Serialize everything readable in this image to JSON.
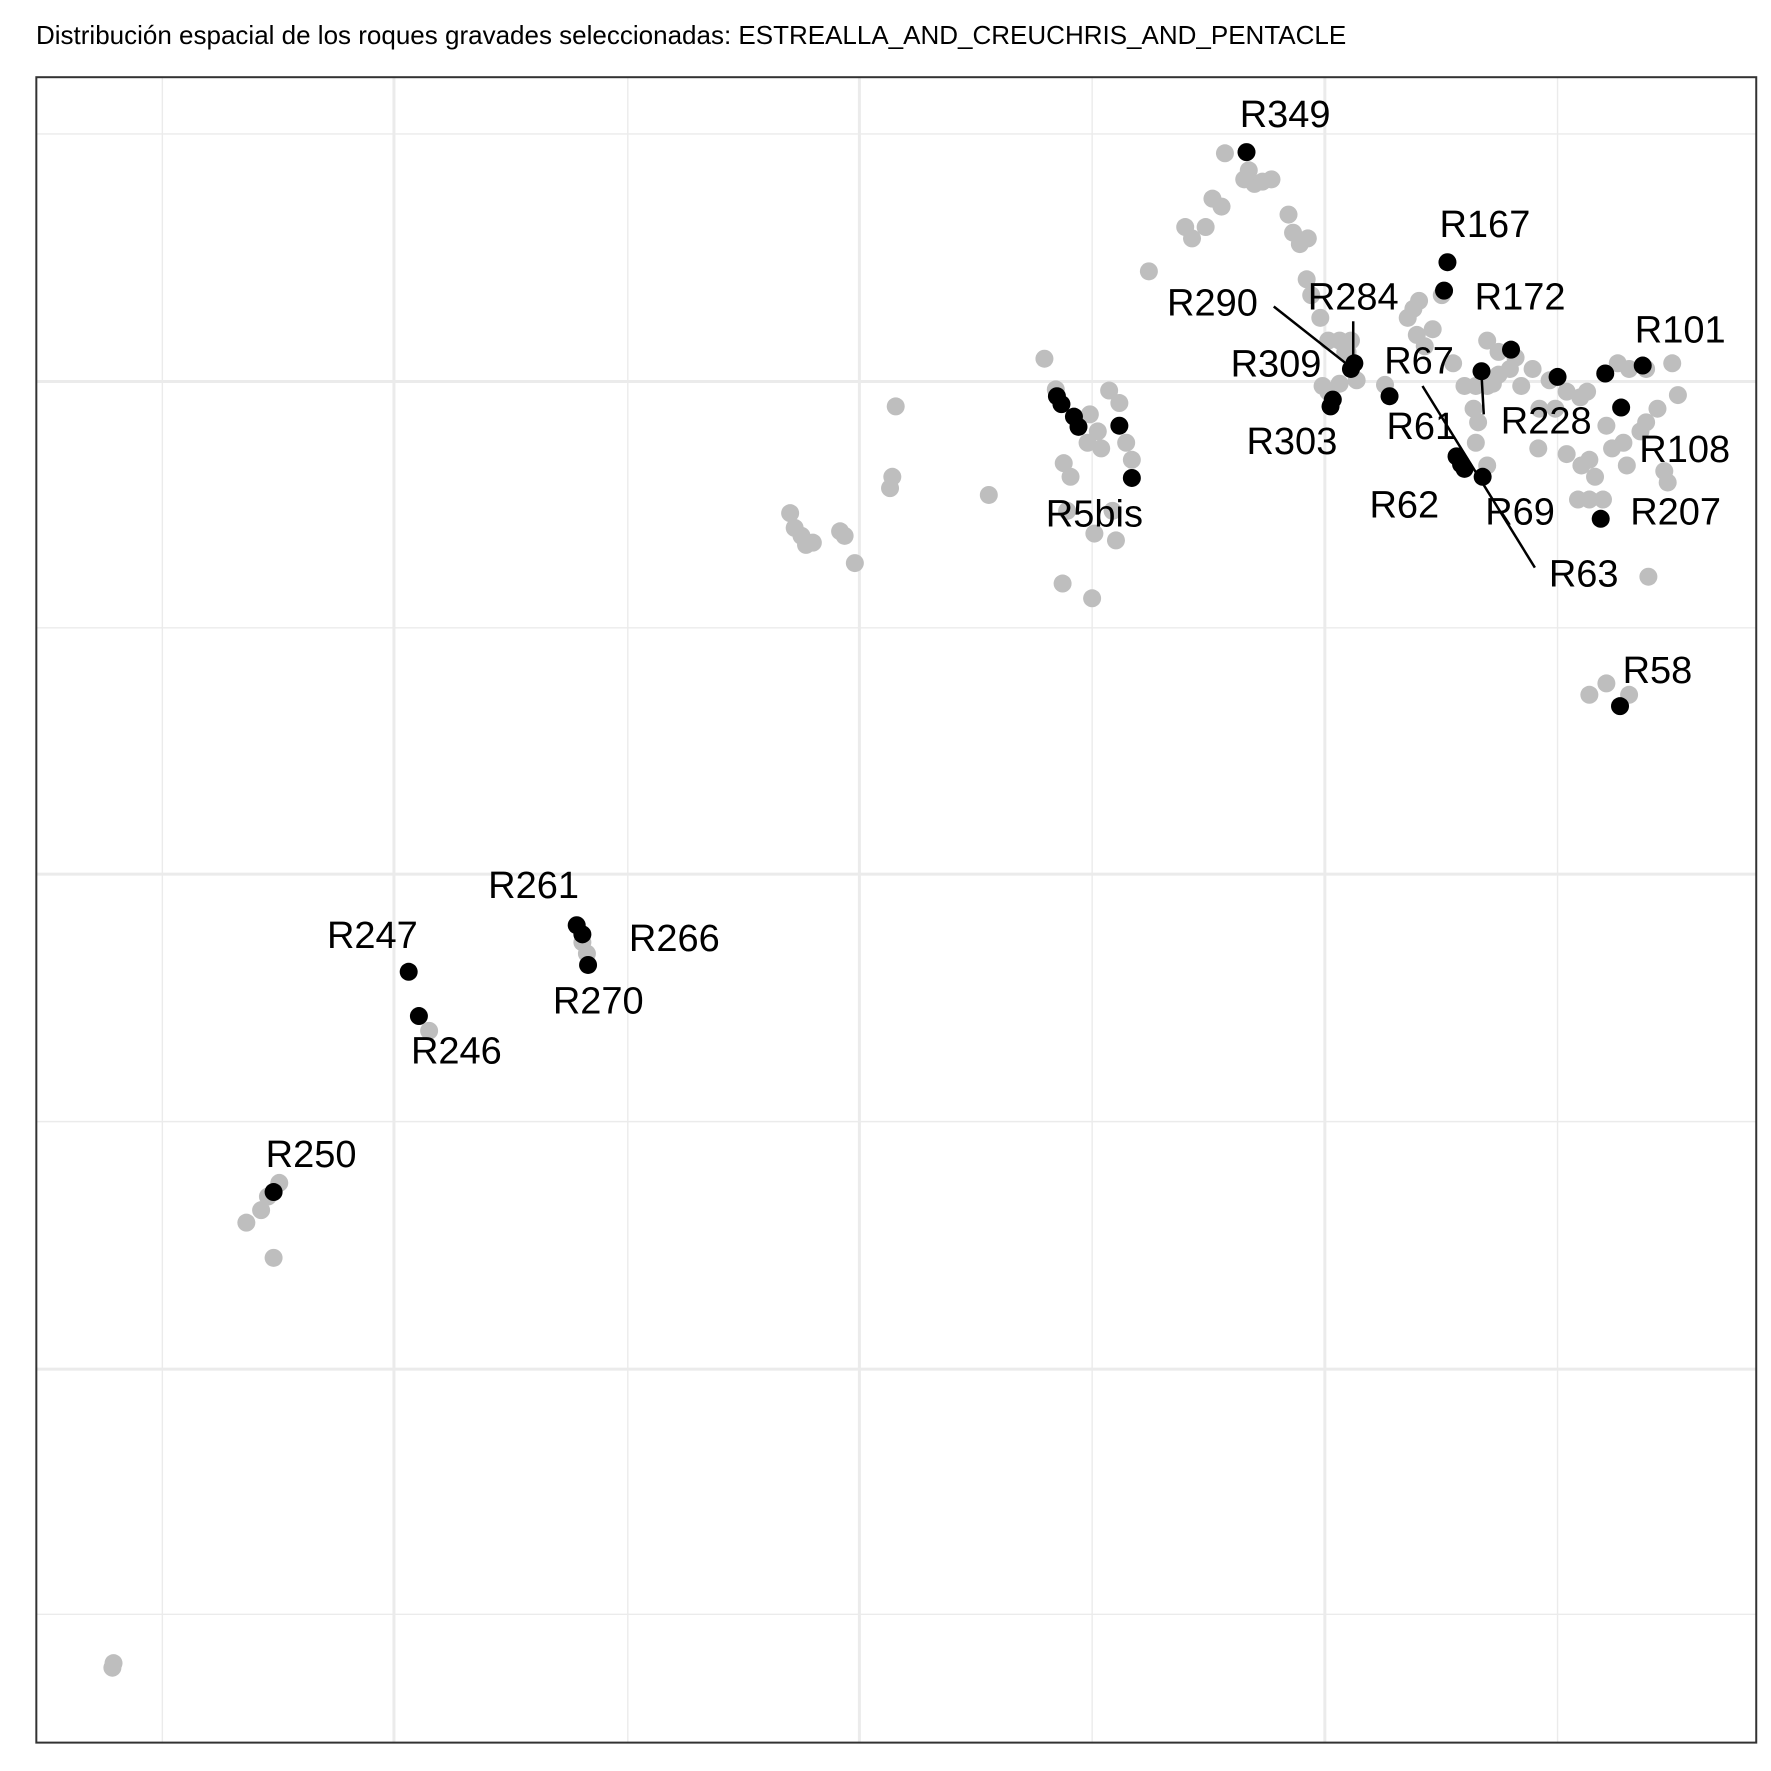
{
  "chart_data": {
    "type": "scatter",
    "title": "Distribución espacial de los roques gravades seleccionadas:  ESTREALLA_AND_CREUCHRIS_AND_PENTACLE",
    "xlim": [
      32,
      1547
    ],
    "ylim": [
      65,
      1532
    ],
    "xticks": [
      347,
      757,
      1167
    ],
    "xminor": [
      143,
      553,
      962,
      1372
    ],
    "yticks": [
      394,
      830,
      1264
    ],
    "yminor": [
      178,
      612,
      1047,
      1482
    ],
    "grid": true,
    "series": [
      {
        "color": "#bebebe",
        "x": [
          99,
          100,
          217,
          230,
          236,
          246,
          241,
          378,
          513,
          517,
          696,
          700,
          706,
          710,
          716,
          740,
          744,
          753,
          786,
          784,
          789,
          871,
          920,
          930,
          937,
          936,
          962,
          943,
          983,
          964,
          977,
          986,
          958,
          970,
          992,
          997,
          940,
          980,
          967,
          960,
          1012,
          1044,
          1050,
          1062,
          1068,
          1076,
          1079,
          1100,
          1105,
          1112,
          1120,
          1096,
          1135,
          1139,
          1145,
          1152,
          1151,
          1155,
          1163,
          1170,
          1180,
          1185,
          1165,
          1170,
          1180,
          1195,
          1220,
          1240,
          1248,
          1255,
          1262,
          1250,
          1245,
          1270,
          1280,
          1290,
          1300,
          1310,
          1315,
          1298,
          1302,
          1300,
          1310,
          1320,
          1330,
          1340,
          1350,
          1356,
          1355,
          1365,
          1380,
          1392,
          1398,
          1380,
          1393,
          1400,
          1405,
          1390,
          1400,
          1412,
          1425,
          1435,
          1450,
          1473,
          1478,
          1460,
          1450,
          1445,
          1430,
          1433,
          1466,
          1469,
          1452,
          1400,
          1415,
          1435,
          1310,
          1335,
          1320,
          1370,
          1415,
          1420,
          1190,
          1187
        ],
        "values": [
          131,
          135,
          523,
          534,
          546,
          558,
          492,
          692,
          770,
          760,
          1148,
          1135,
          1128,
          1120,
          1122,
          1132,
          1128,
          1104,
          1180,
          1170,
          1242,
          1164,
          1284,
          1257,
          1192,
          1086,
          1073,
          1180,
          1124,
          1130,
          1256,
          1245,
          1210,
          1205,
          1210,
          1195,
          1150,
          1150,
          1220,
          1235,
          1361,
          1400,
          1390,
          1400,
          1425,
          1418,
          1465,
          1450,
          1438,
          1440,
          1442,
          1442,
          1411,
          1395,
          1385,
          1390,
          1354,
          1340,
          1320,
          1300,
          1300,
          1290,
          1260,
          1255,
          1262,
          1265,
          1261,
          1320,
          1305,
          1295,
          1310,
          1335,
          1328,
          1340,
          1280,
          1260,
          1260,
          1260,
          1262,
          1240,
          1228,
          1210,
          1190,
          1290,
          1275,
          1260,
          1275,
          1240,
          1205,
          1265,
          1255,
          1250,
          1255,
          1200,
          1190,
          1195,
          1180,
          1160,
          1160,
          1160,
          1280,
          1275,
          1275,
          1280,
          1252,
          1240,
          1228,
          1220,
          1210,
          1190,
          1185,
          1175,
          1092,
          988,
          998,
          988,
          1300,
          1285,
          1270,
          1240,
          1225,
          1205,
          1300,
          1290
        ]
      },
      {
        "color": "#000000",
        "x": [
          1098,
          1275,
          1272,
          1193,
          1190,
          1174,
          1172,
          1224,
          1305,
          1283,
          1290,
          1306,
          1287,
          1447,
          1428,
          1410,
          1427,
          1372,
          1414,
          1331,
          997,
          931,
          935,
          946,
          950,
          986,
          508,
          513,
          518,
          360,
          369,
          241
        ],
        "values": [
          1466,
          1369,
          1344,
          1280,
          1275,
          1248,
          1242,
          1251,
          1273,
          1198,
          1187,
          1180,
          1191,
          1278,
          1241,
          1143,
          978,
          1268,
          1271,
          1292,
          1179,
          1251,
          1244,
          1233,
          1224,
          1225,
          785,
          777,
          750,
          744,
          705,
          550
        ],
        "labels": [
          "R349",
          "R167",
          "R172",
          "R284",
          "R290",
          "R309",
          "R303",
          "R67",
          "R228",
          "R61",
          "R62",
          "R69",
          "R63",
          "R101",
          "R108",
          "R207",
          "R58",
          null,
          null,
          null,
          "R5bis",
          null,
          null,
          null,
          null,
          null,
          "R261",
          "R266",
          "R270",
          "R247",
          "R246",
          "R250"
        ]
      }
    ]
  }
}
